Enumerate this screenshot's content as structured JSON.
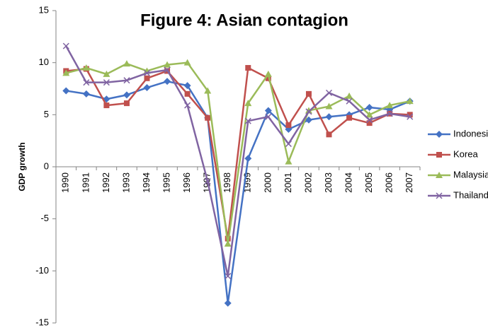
{
  "chart_data": {
    "type": "line",
    "title": "Figure 4: Asian contagion",
    "y_label": "GDP growth",
    "categories": [
      "1990",
      "1991",
      "1992",
      "1993",
      "1994",
      "1995",
      "1996",
      "1997",
      "1998",
      "1999",
      "2000",
      "2001",
      "2002",
      "2003",
      "2004",
      "2005",
      "2006",
      "2007"
    ],
    "series": [
      {
        "name": "Indonesia",
        "color": "#4472c4",
        "marker": "diamond",
        "values": [
          7.3,
          7.0,
          6.5,
          6.9,
          7.6,
          8.2,
          7.8,
          4.7,
          -13.1,
          0.8,
          5.4,
          3.6,
          4.5,
          4.8,
          5.0,
          5.7,
          5.5,
          6.3
        ]
      },
      {
        "name": "Korea",
        "color": "#c0504d",
        "marker": "square",
        "values": [
          9.2,
          9.4,
          5.9,
          6.1,
          8.5,
          9.2,
          7.0,
          4.7,
          -6.9,
          9.5,
          8.5,
          4.0,
          7.0,
          3.1,
          4.7,
          4.2,
          5.1,
          5.0
        ]
      },
      {
        "name": "Malaysia",
        "color": "#9bbb59",
        "marker": "triangle",
        "values": [
          9.0,
          9.5,
          8.9,
          9.9,
          9.2,
          9.8,
          10.0,
          7.3,
          -7.4,
          6.1,
          8.9,
          0.5,
          5.4,
          5.8,
          6.8,
          5.0,
          5.9,
          6.3
        ]
      },
      {
        "name": "Thailand",
        "color": "#8064a2",
        "marker": "x",
        "values": [
          11.6,
          8.1,
          8.1,
          8.3,
          9.0,
          9.3,
          5.9,
          -1.4,
          -10.5,
          4.4,
          4.8,
          2.2,
          5.3,
          7.1,
          6.3,
          4.5,
          5.1,
          4.8
        ]
      }
    ],
    "ylim": [
      -15,
      15
    ],
    "yticks": [
      -15,
      -10,
      -5,
      0,
      5,
      10,
      15
    ],
    "grid": false,
    "legend": "right"
  }
}
